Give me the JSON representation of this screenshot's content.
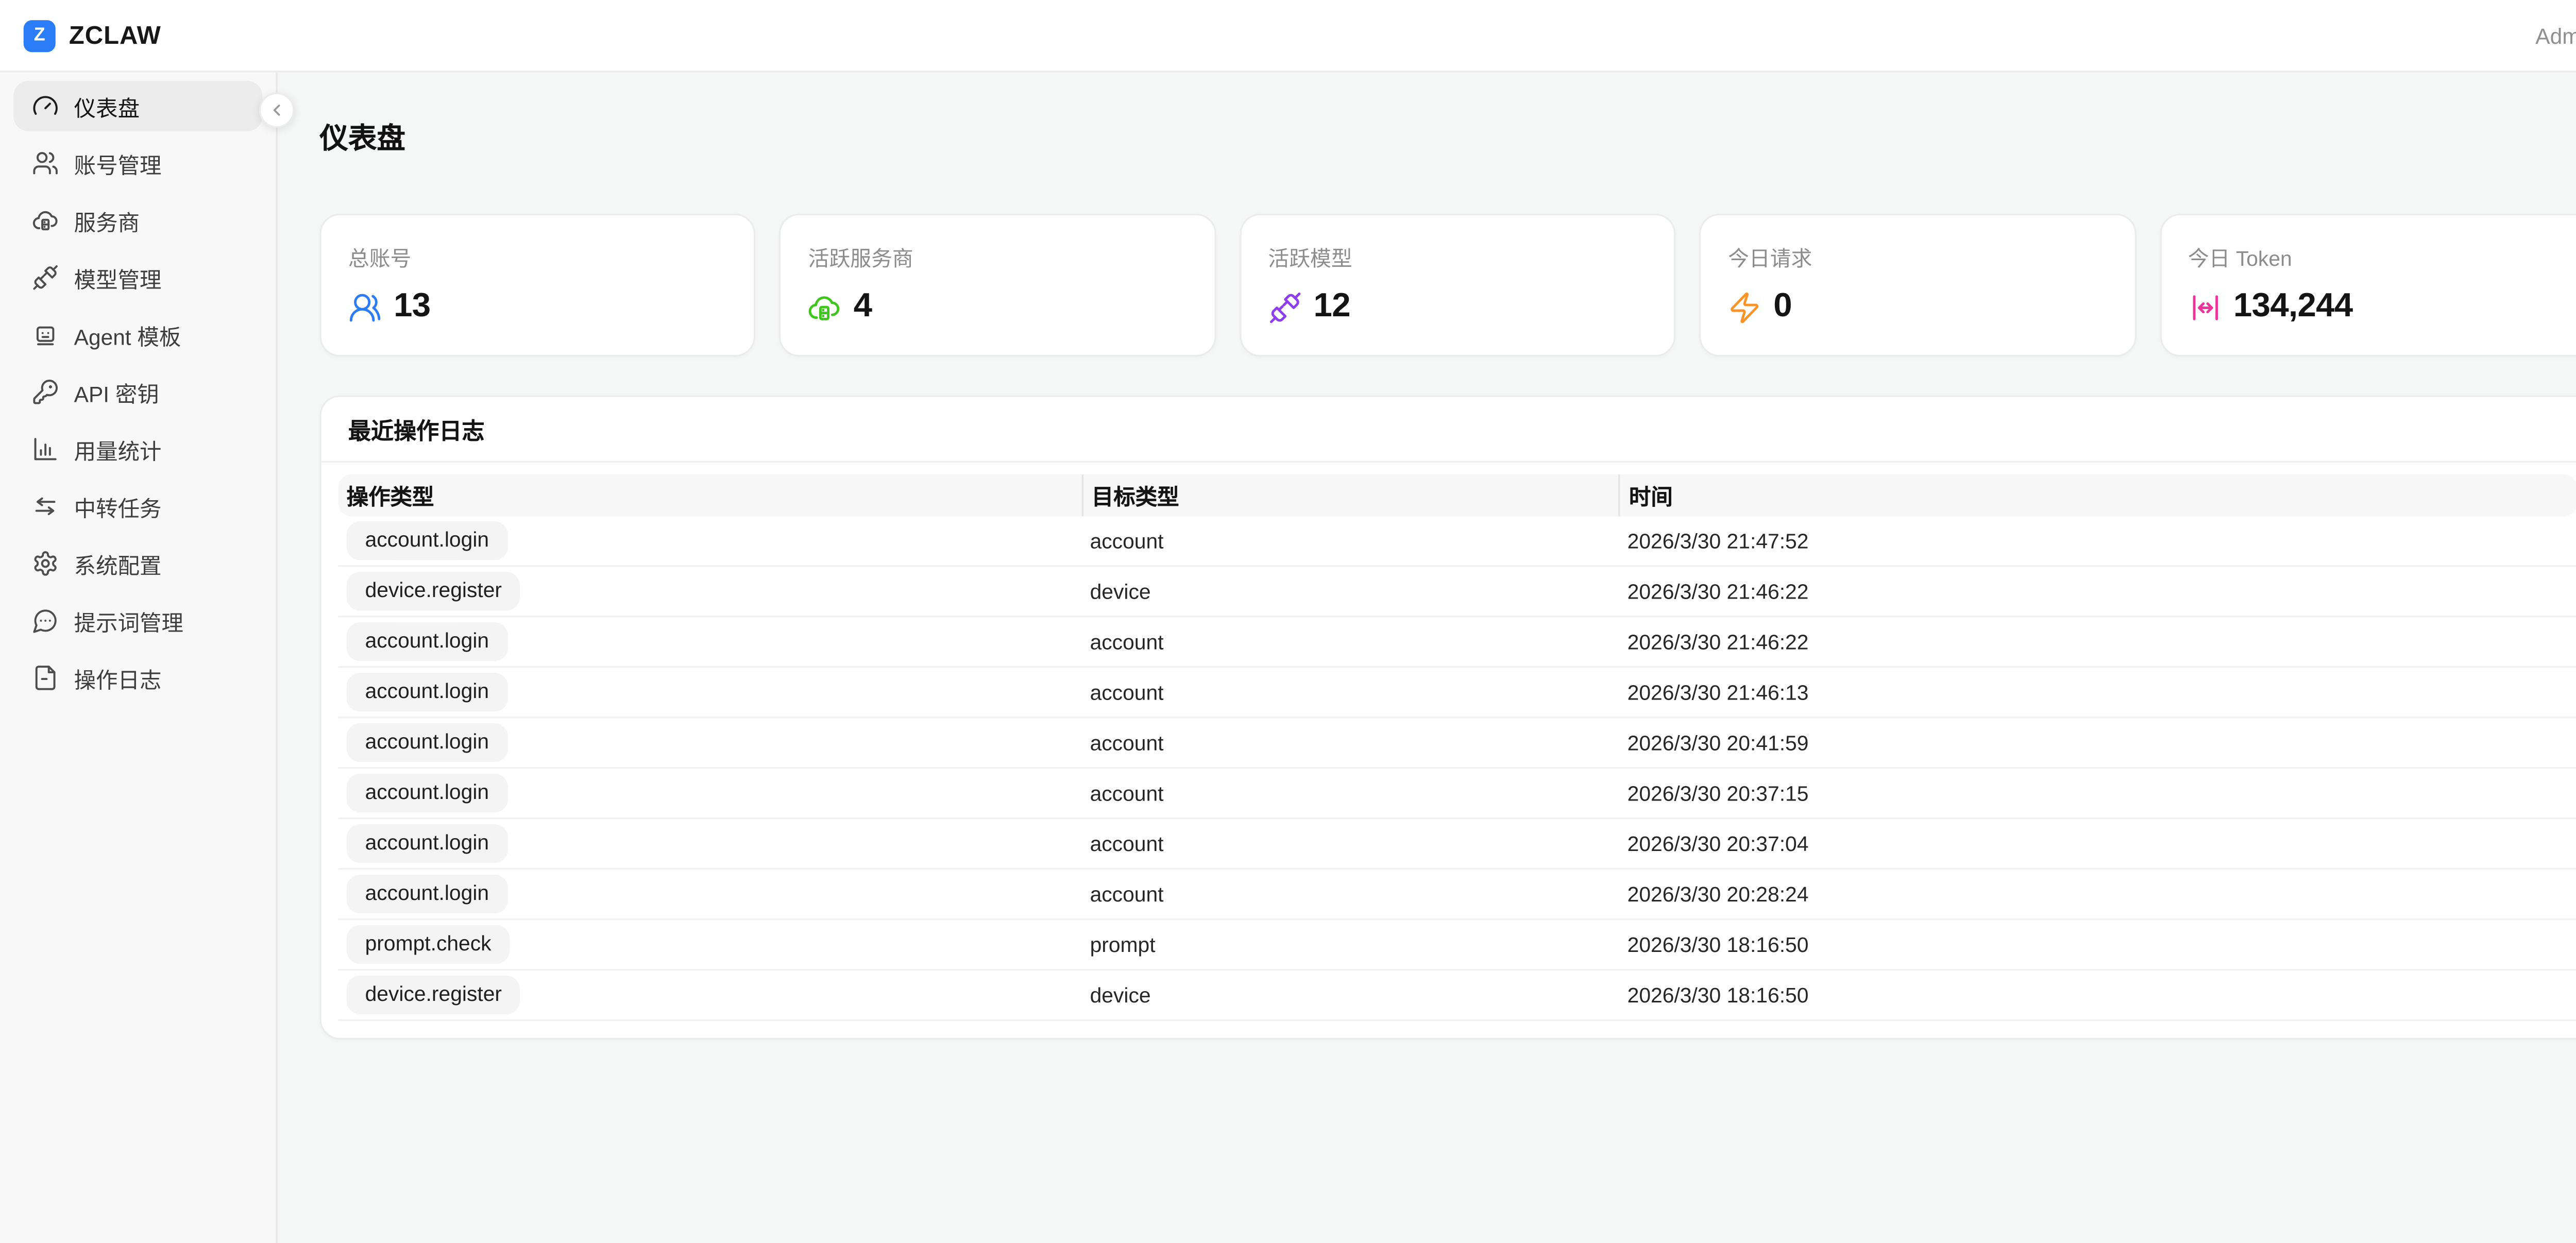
{
  "header": {
    "logo_letter": "Z",
    "brand": "ZCLAW",
    "brand_color": "#2b7cf7",
    "user": "Admin"
  },
  "page": {
    "title": "仪表盘"
  },
  "sidebar": {
    "items": [
      {
        "key": "dashboard",
        "icon": "gauge-icon",
        "label": "仪表盘",
        "active": true
      },
      {
        "key": "accounts",
        "icon": "users-icon",
        "label": "账号管理",
        "active": false
      },
      {
        "key": "providers",
        "icon": "cloud-server-icon",
        "label": "服务商",
        "active": false
      },
      {
        "key": "models",
        "icon": "unplug-icon",
        "label": "模型管理",
        "active": false
      },
      {
        "key": "agent-templates",
        "icon": "bot-icon",
        "label": "Agent 模板",
        "active": false
      },
      {
        "key": "api-keys",
        "icon": "key-icon",
        "label": "API 密钥",
        "active": false
      },
      {
        "key": "usage",
        "icon": "bar-chart-icon",
        "label": "用量统计",
        "active": false
      },
      {
        "key": "relay-tasks",
        "icon": "swap-icon",
        "label": "中转任务",
        "active": false
      },
      {
        "key": "system-config",
        "icon": "gear-icon",
        "label": "系统配置",
        "active": false
      },
      {
        "key": "prompts",
        "icon": "message-dots-icon",
        "label": "提示词管理",
        "active": false
      },
      {
        "key": "op-logs",
        "icon": "file-text-icon",
        "label": "操作日志",
        "active": false
      }
    ]
  },
  "stats": [
    {
      "label": "总账号",
      "value": "13",
      "icon": "users-round-icon",
      "color": "#2b7cf7"
    },
    {
      "label": "活跃服务商",
      "value": "4",
      "icon": "cloud-server-icon",
      "color": "#3fc51d"
    },
    {
      "label": "活跃模型",
      "value": "12",
      "icon": "unplug-icon",
      "color": "#8d3ff0"
    },
    {
      "label": "今日请求",
      "value": "0",
      "icon": "zap-icon",
      "color": "#fc9327"
    },
    {
      "label": "今日 Token",
      "value": "134,244",
      "icon": "move-horizontal-icon",
      "color": "#ee339b"
    }
  ],
  "logs": {
    "title": "最近操作日志",
    "columns": [
      "操作类型",
      "目标类型",
      "时间"
    ],
    "rows": [
      {
        "action": "account.login",
        "target": "account",
        "time": "2026/3/30 21:47:52"
      },
      {
        "action": "device.register",
        "target": "device",
        "time": "2026/3/30 21:46:22"
      },
      {
        "action": "account.login",
        "target": "account",
        "time": "2026/3/30 21:46:22"
      },
      {
        "action": "account.login",
        "target": "account",
        "time": "2026/3/30 21:46:13"
      },
      {
        "action": "account.login",
        "target": "account",
        "time": "2026/3/30 20:41:59"
      },
      {
        "action": "account.login",
        "target": "account",
        "time": "2026/3/30 20:37:15"
      },
      {
        "action": "account.login",
        "target": "account",
        "time": "2026/3/30 20:37:04"
      },
      {
        "action": "account.login",
        "target": "account",
        "time": "2026/3/30 20:28:24"
      },
      {
        "action": "prompt.check",
        "target": "prompt",
        "time": "2026/3/30 18:16:50"
      },
      {
        "action": "device.register",
        "target": "device",
        "time": "2026/3/30 18:16:50"
      }
    ]
  }
}
